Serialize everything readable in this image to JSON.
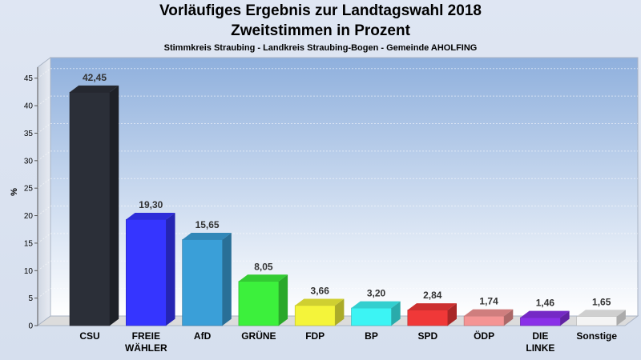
{
  "title": "Vorläufiges Ergebnis zur Landtagswahl 2018",
  "subtitle": "Zweitstimmen in Prozent",
  "subsubtitle": "Stimmkreis Straubing - Landkreis Straubing-Bogen - Gemeinde AHOLFING",
  "chart_data": {
    "type": "bar",
    "title": "Vorläufiges Ergebnis zur Landtagswahl 2018",
    "subtitle": "Zweitstimmen in Prozent",
    "ylabel": "%",
    "xlabel": "",
    "ylim": [
      0,
      47
    ],
    "yticks": [
      0,
      5,
      10,
      15,
      20,
      25,
      30,
      35,
      40,
      45
    ],
    "grid": true,
    "legend": "none",
    "categories": [
      [
        "CSU"
      ],
      [
        "FREIE",
        "WÄHLER"
      ],
      [
        "AfD"
      ],
      [
        "GRÜNE"
      ],
      [
        "FDP"
      ],
      [
        "BP"
      ],
      [
        "SPD"
      ],
      [
        "ÖDP"
      ],
      [
        "DIE",
        "LINKE"
      ],
      [
        "Sonstige"
      ]
    ],
    "values": [
      42.45,
      19.3,
      15.65,
      8.05,
      3.66,
      3.2,
      2.84,
      1.74,
      1.46,
      1.65
    ],
    "value_labels": [
      "42,45",
      "19,30",
      "15,65",
      "8,05",
      "3,66",
      "3,20",
      "2,84",
      "1,74",
      "1,46",
      "1,65"
    ],
    "colors": [
      "#2b2f38",
      "#3535ff",
      "#3a9fd8",
      "#3cf03c",
      "#f4f43a",
      "#3cf4f4",
      "#f03838",
      "#f49494",
      "#8a30e8",
      "#f4f4f4"
    ]
  }
}
